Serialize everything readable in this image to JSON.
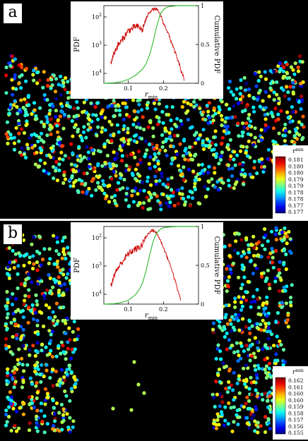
{
  "chart_data": [
    {
      "type": "scatter",
      "panel_label": "a",
      "scatter": {
        "description_shape": "curved band",
        "color_by": "r_min"
      },
      "colorbar": {
        "title_main": "r",
        "title_sub": "min",
        "ticks": [
          "0.181",
          "0.180",
          "0.180",
          "0.179",
          "0.179",
          "0.178",
          "0.178",
          "0.177",
          "0.177"
        ],
        "range": [
          0.177,
          0.181
        ]
      },
      "inset": {
        "type": "line",
        "xlabel_main": "r",
        "xlabel_sub": "min",
        "ylabel_left": "PDF",
        "ylabel_right": "Cumulative PDF",
        "x_ticks": [
          "0.1",
          "0.2"
        ],
        "y_left_ticks": [
          {
            "base": "10",
            "exp": "2"
          },
          {
            "base": "10",
            "exp": "3"
          },
          {
            "base": "10",
            "exp": "4"
          }
        ],
        "y_right_ticks": [
          "1",
          "0.5",
          "0"
        ],
        "xlim": [
          0.03,
          0.3
        ],
        "series": [
          {
            "name": "",
            "color": "#cc0000",
            "axis": "left-log",
            "x": [
              0.05,
              0.06,
              0.07,
              0.08,
              0.09,
              0.1,
              0.11,
              0.12,
              0.13,
              0.14,
              0.15,
              0.16,
              0.17,
              0.18,
              0.19,
              0.2,
              0.21,
              0.22,
              0.23,
              0.24,
              0.25,
              0.26
            ],
            "y": [
              10,
              30,
              60,
              90,
              150,
              250,
              300,
              380,
              360,
              250,
              700,
              1500,
              2000,
              2000,
              1200,
              500,
              250,
              100,
              40,
              15,
              5,
              2
            ]
          },
          {
            "name": "",
            "color": "#00aa00",
            "axis": "right-linear",
            "x": [
              0.03,
              0.06,
              0.08,
              0.1,
              0.12,
              0.14,
              0.15,
              0.16,
              0.17,
              0.18,
              0.19,
              0.2,
              0.21,
              0.22,
              0.24,
              0.3
            ],
            "y": [
              0,
              0.005,
              0.02,
              0.05,
              0.1,
              0.18,
              0.25,
              0.36,
              0.52,
              0.72,
              0.88,
              0.95,
              0.98,
              0.99,
              1.0,
              1.0
            ]
          }
        ]
      }
    },
    {
      "type": "scatter",
      "panel_label": "b",
      "scatter": {
        "description_shape": "two vertical bands",
        "color_by": "r_min"
      },
      "colorbar": {
        "title_main": "r",
        "title_sub": "min",
        "ticks": [
          "0.162",
          "0.161",
          "0.160",
          "0.160",
          "0.159",
          "0.158",
          "0.157",
          "0.156",
          "0.155"
        ],
        "range": [
          0.155,
          0.162
        ]
      },
      "inset": {
        "type": "line",
        "xlabel_main": "r",
        "xlabel_sub": "min",
        "ylabel_left": "PDF",
        "ylabel_right": "Cumulative PDF",
        "x_ticks": [
          "0.1",
          "0.2"
        ],
        "y_left_ticks": [
          {
            "base": "10",
            "exp": "2"
          },
          {
            "base": "10",
            "exp": "3"
          },
          {
            "base": "10",
            "exp": "4"
          }
        ],
        "y_right_ticks": [
          "1",
          "0.5",
          "0"
        ],
        "xlim": [
          0.03,
          0.3
        ],
        "series": [
          {
            "name": "",
            "color": "#cc0000",
            "axis": "left-log",
            "x": [
              0.05,
              0.06,
              0.07,
              0.08,
              0.09,
              0.1,
              0.11,
              0.12,
              0.13,
              0.14,
              0.15,
              0.16,
              0.17,
              0.18,
              0.19,
              0.2,
              0.21,
              0.22,
              0.23,
              0.24,
              0.25
            ],
            "y": [
              8,
              25,
              50,
              80,
              130,
              200,
              260,
              320,
              350,
              500,
              1000,
              1600,
              2000,
              1500,
              800,
              350,
              150,
              60,
              20,
              6,
              2
            ]
          },
          {
            "name": "",
            "color": "#00aa00",
            "axis": "right-linear",
            "x": [
              0.03,
              0.06,
              0.08,
              0.1,
              0.12,
              0.13,
              0.14,
              0.15,
              0.16,
              0.17,
              0.18,
              0.19,
              0.2,
              0.22,
              0.24,
              0.3
            ],
            "y": [
              0,
              0.005,
              0.02,
              0.05,
              0.12,
              0.18,
              0.27,
              0.42,
              0.62,
              0.8,
              0.91,
              0.96,
              0.985,
              0.995,
              1.0,
              1.0
            ]
          }
        ]
      }
    }
  ]
}
